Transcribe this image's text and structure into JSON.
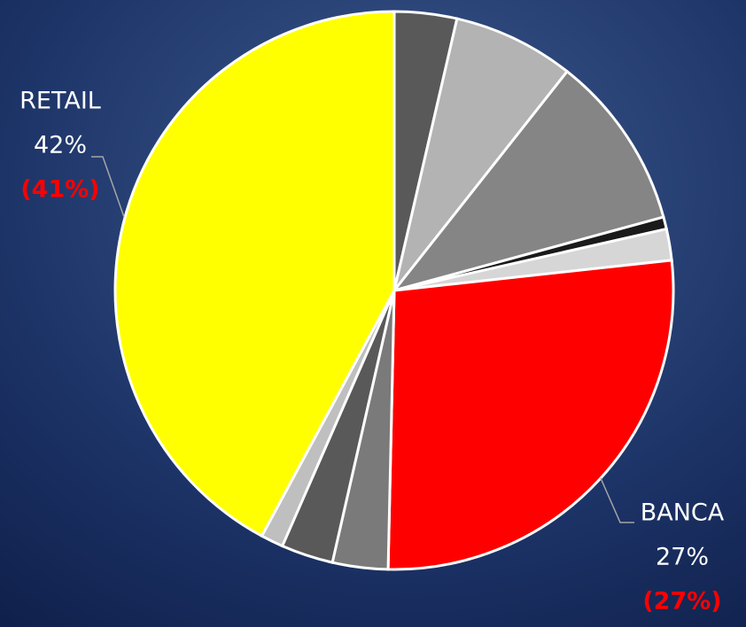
{
  "chart_data": {
    "type": "pie",
    "categories": [
      null,
      null,
      null,
      null,
      null,
      "BANCA",
      null,
      null,
      null,
      "RETAIL"
    ],
    "values": [
      3.6,
      7,
      10.1,
      0.7,
      1.8,
      27,
      3.2,
      3,
      1.3,
      42
    ],
    "value_labels": [
      null,
      null,
      null,
      null,
      null,
      "27%",
      null,
      null,
      null,
      "42%"
    ],
    "secondary_values": [
      null,
      null,
      null,
      null,
      null,
      27,
      null,
      null,
      null,
      41
    ],
    "secondary_value_labels": [
      null,
      null,
      null,
      null,
      null,
      "(27%)",
      null,
      null,
      null,
      "(41%)"
    ],
    "colors": [
      "#595959",
      "#b3b3b3",
      "#858585",
      "#1a1a1a",
      "#d6d6d6",
      "#ff0000",
      "#7a7a7a",
      "#595959",
      "#bfbfbf",
      "#ffff00"
    ],
    "secondary_label_color": "#ff0000"
  }
}
